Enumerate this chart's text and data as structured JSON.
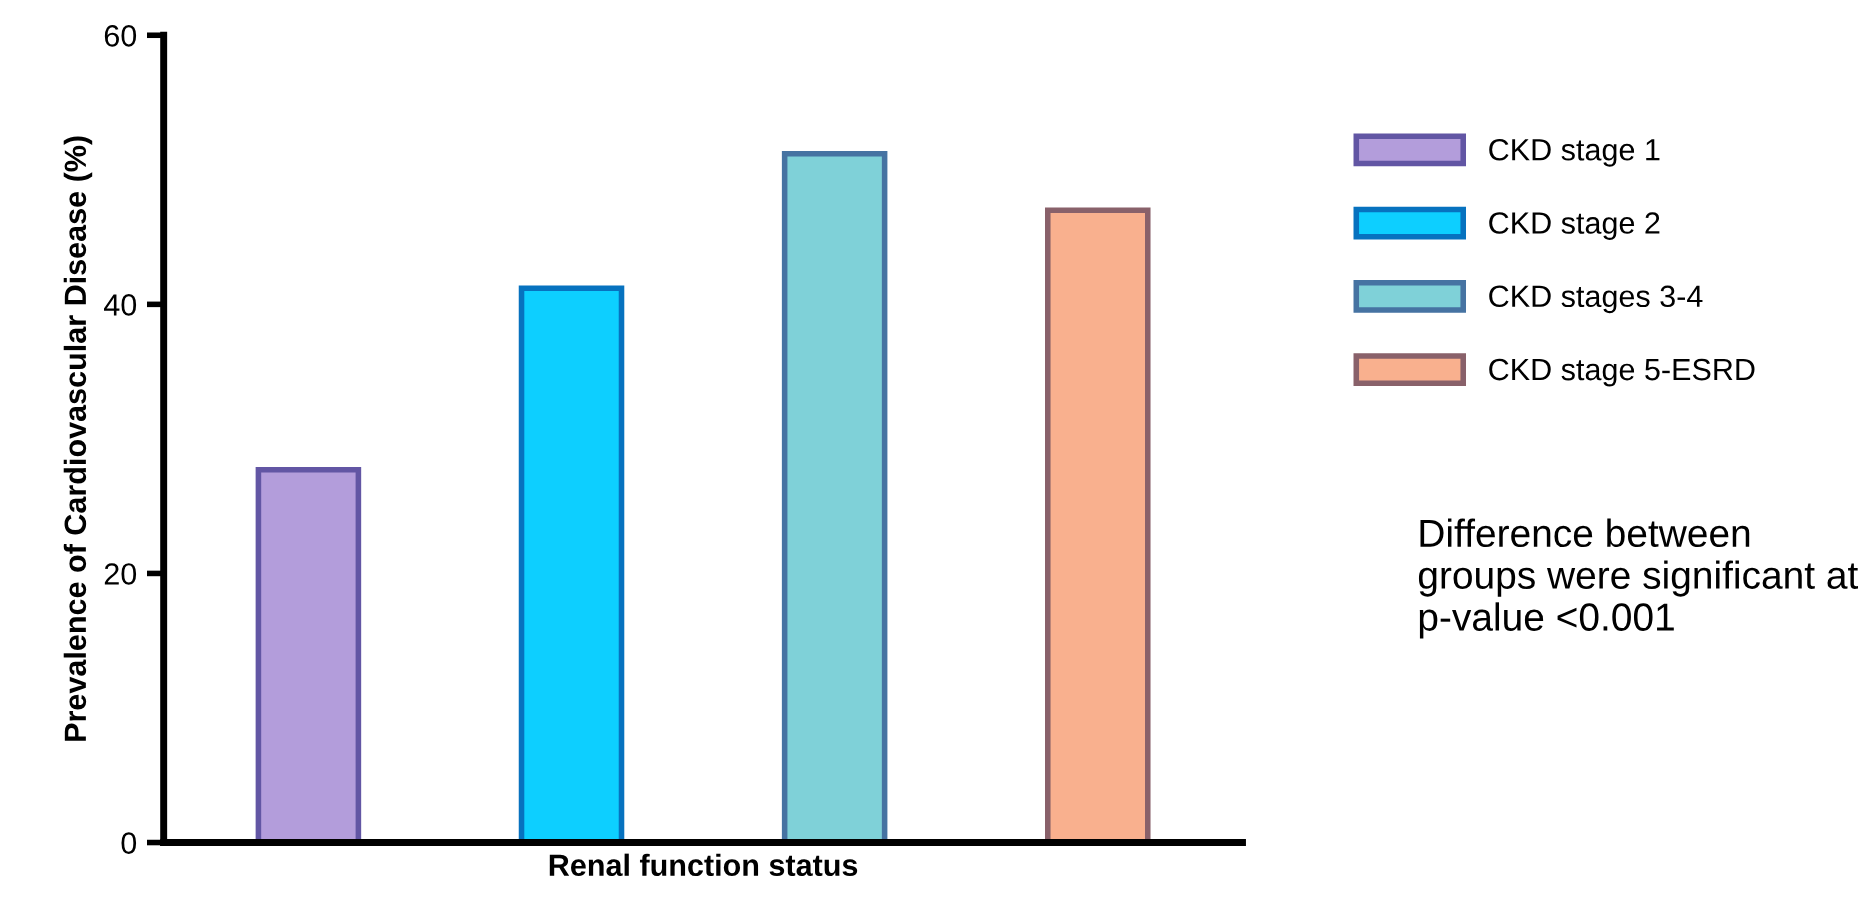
{
  "chart_data": {
    "type": "bar",
    "xlabel": "Renal function status",
    "ylabel": "Prevalence of Cardiovascular Disease (%)",
    "categories": [
      null,
      null,
      null,
      null
    ],
    "series": [
      {
        "name": "CKD stage 1",
        "color": "#b39ddb",
        "values": [
          27.7,
          null,
          null,
          null
        ]
      },
      {
        "name": "CKD stage 2",
        "color": "#0dcfff",
        "values": [
          null,
          41.2,
          null,
          null
        ]
      },
      {
        "name": "CKD stages 3-4",
        "color": "#7fd1d8",
        "values": [
          null,
          null,
          51.2,
          null
        ]
      },
      {
        "name": "CKD stage 5-ESRD",
        "color": "#f9b08e",
        "values": [
          null,
          null,
          null,
          47.0
        ]
      }
    ],
    "ylim": [
      0,
      60
    ],
    "yticks": [
      0,
      20,
      40,
      60
    ],
    "tick_labels": "y",
    "grid": false,
    "legend": "right",
    "annotations": [
      "Difference between groups were significant at p-value <0.001"
    ]
  }
}
